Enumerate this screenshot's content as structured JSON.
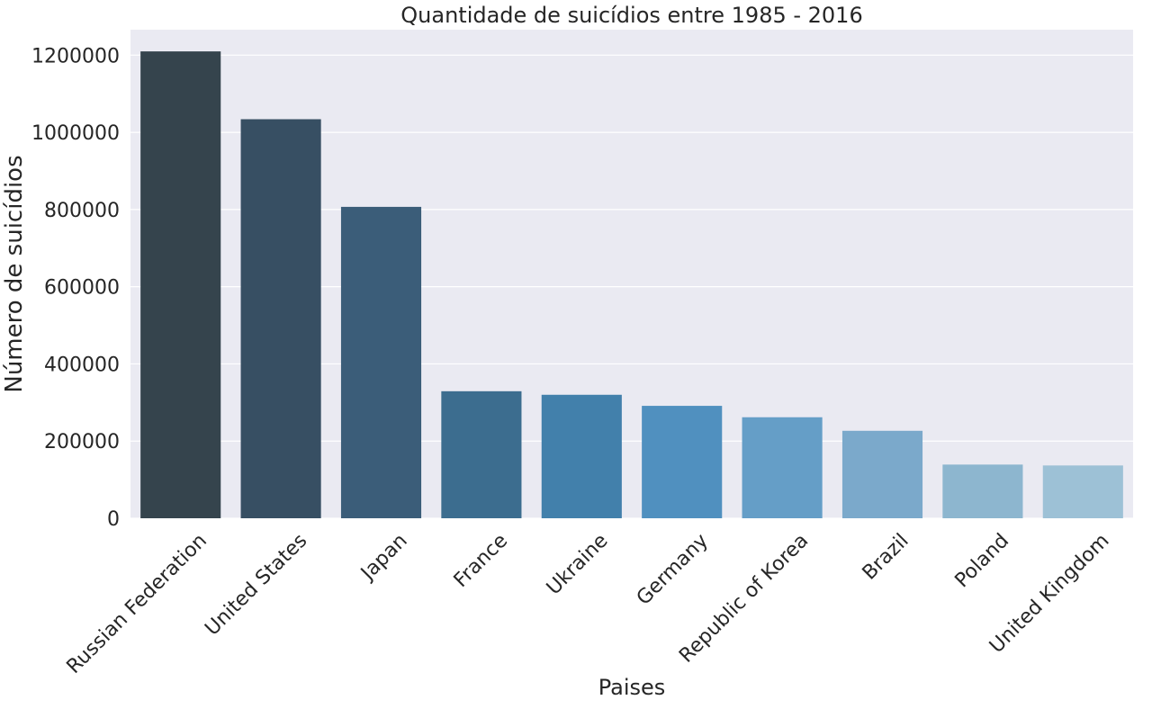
{
  "chart_data": {
    "type": "bar",
    "title": "Quantidade de suicídios entre 1985 - 2016",
    "xlabel": "Paises",
    "ylabel": "Número de suicídios",
    "categories": [
      "Russian Federation",
      "United States",
      "Japan",
      "France",
      "Ukraine",
      "Germany",
      "Republic of Korea",
      "Brazil",
      "Poland",
      "United Kingdom"
    ],
    "values": [
      1209742,
      1034013,
      806902,
      329127,
      319950,
      291262,
      261730,
      226613,
      139098,
      136805
    ],
    "ylim": [
      0,
      1266000
    ],
    "yticks": [
      0,
      200000,
      400000,
      600000,
      800000,
      1000000,
      1200000
    ],
    "ytick_labels": [
      "0",
      "200000",
      "400000",
      "600000",
      "800000",
      "1000000",
      "1200000"
    ],
    "grid": true,
    "legend": "none",
    "colors": [
      "#35444d",
      "#374f63",
      "#3b5d79",
      "#3c6d8f",
      "#4280ab",
      "#5090bf",
      "#659ec7",
      "#7ba9cb",
      "#8db6cf",
      "#9dc1d6"
    ],
    "background": "#eaeaf2",
    "grid_color": "#ffffff"
  }
}
